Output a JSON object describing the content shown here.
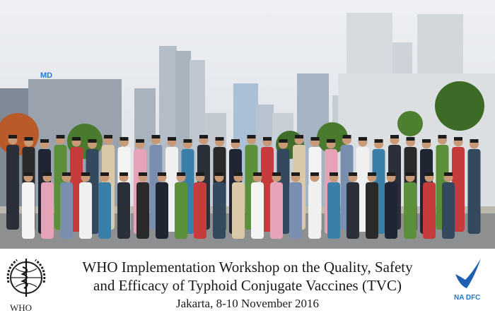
{
  "photo": {
    "building_sign": "MD",
    "description_colors": {
      "sky": "#e4e7ec",
      "ground": "#8d8f91",
      "tree": "#4a7a2e"
    }
  },
  "caption": {
    "title_line1": "WHO Implementation Workshop on the Quality, Safety",
    "title_line2": "and Efficacy of Typhoid Conjugate Vaccines (TVC)",
    "subtitle": "Jakarta, 8-10 November 2016"
  },
  "logos": {
    "who_label": "WHO",
    "nadfc_label": "NA DFC",
    "nadfc_color": "#1d78c8"
  }
}
